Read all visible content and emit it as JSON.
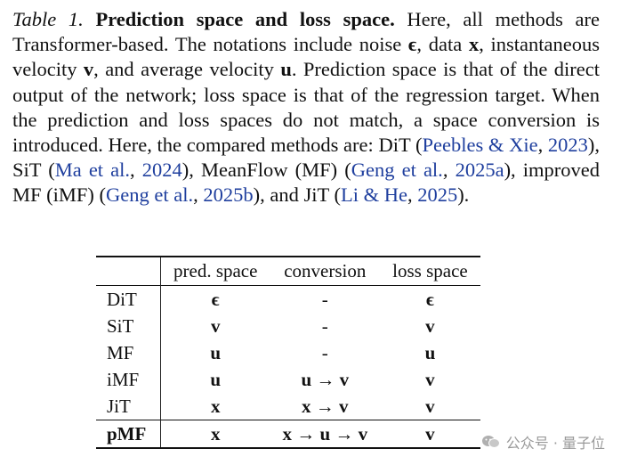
{
  "caption": {
    "label": "Table 1.",
    "title": "Prediction space and loss space.",
    "s1": "Here, all methods are Transformer-based. The notations include noise",
    "sym_noise": "ϵ",
    "s2": ", data",
    "sym_data": "x",
    "s3": ", instantaneous velocity",
    "sym_vel": "v",
    "s4": ", and average velocity",
    "sym_avg": "u",
    "s5": ". Prediction space is that of the direct output of the network; loss space is that of the regression target. When the prediction and loss spaces do not match, a space conversion is introduced. Here, the compared methods are: DiT (",
    "cite1": "Peebles & Xie",
    "c1": ",",
    "cite1y": "2023",
    "s6": "), SiT (",
    "cite2": "Ma et al.",
    "c2": ",",
    "cite2y": "2024",
    "s7": "), MeanFlow (MF) (",
    "cite3": "Geng et al.",
    "c3": ",",
    "cite3y": "2025a",
    "s8": "), improved MF (iMF) (",
    "cite4": "Geng et al.",
    "c4": ",",
    "cite4y": "2025b",
    "s9": "), and JiT (",
    "cite5": "Li & He",
    "c5": ",",
    "cite5y": "2025",
    "s10": ")."
  },
  "table": {
    "headers": [
      "",
      "pred. space",
      "conversion",
      "loss space"
    ],
    "rows": [
      {
        "method": "DiT",
        "pred": "ϵ",
        "conv": "-",
        "loss": "ϵ"
      },
      {
        "method": "SiT",
        "pred": "v",
        "conv": "-",
        "loss": "v"
      },
      {
        "method": "MF",
        "pred": "u",
        "conv": "-",
        "loss": "u"
      },
      {
        "method": "iMF",
        "pred": "u",
        "conv": "u → v",
        "loss": "v"
      },
      {
        "method": "JiT",
        "pred": "x",
        "conv": "x → v",
        "loss": "v"
      },
      {
        "method": "pMF",
        "pred": "x",
        "conv": "x → u → v",
        "loss": "v"
      }
    ]
  },
  "watermark": {
    "text": "公众号 · 量子位",
    "icon": "wechat-icon"
  }
}
